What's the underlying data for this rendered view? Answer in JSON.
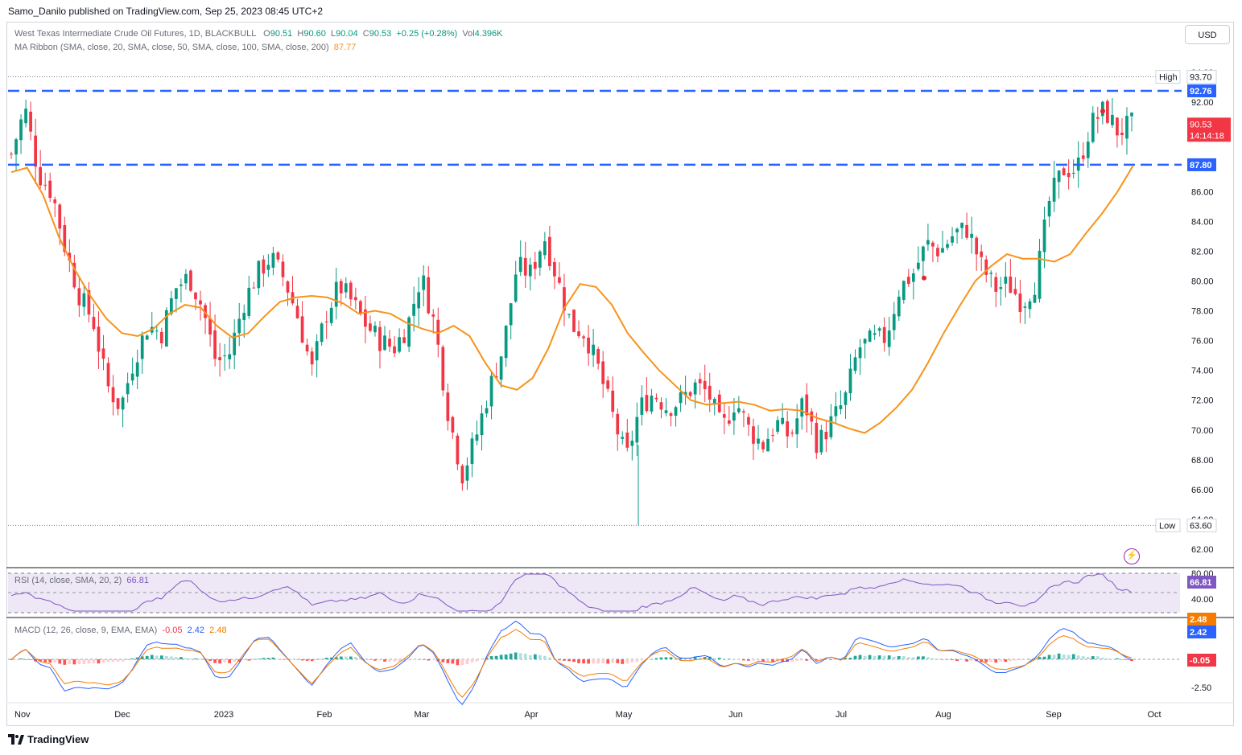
{
  "header": {
    "publisher_line": "Samo_Danilo published on TradingView.com, Sep 25, 2023 08:45 UTC+2",
    "currency_button": "USD"
  },
  "legend": {
    "title": "West Texas Intermediate Crude Oil Futures, 1D, BLACKBULL",
    "open_label": "O",
    "open": "90.51",
    "high_label": "H",
    "high": "90.60",
    "low_label": "L",
    "low": "90.04",
    "close_label": "C",
    "close": "90.53",
    "change": "+0.25 (+0.28%)",
    "vol_label": "Vol",
    "vol": "4.396K",
    "ma_name": "MA Ribbon (SMA, close, 20, SMA, close, 50, SMA, close, 100, SMA, close, 200)",
    "ma_value": "87.77"
  },
  "rsi_legend": {
    "name": "RSI (14, close, SMA, 20, 2)",
    "value": "66.81"
  },
  "macd_legend": {
    "name": "MACD (12, 26, close, 9, EMA, EMA)",
    "hist": "-0.05",
    "macd": "2.42",
    "signal": "2.48"
  },
  "price_tags": {
    "high_label": "High",
    "high_value": "93.70",
    "low_label": "Low",
    "low_value": "63.60",
    "level_upper": "92.76",
    "level_lower": "87.80",
    "last_price": "90.53",
    "countdown": "14:14:18"
  },
  "rsi_tag": "66.81",
  "macd_tags": {
    "signal": "2.48",
    "macd": "2.42",
    "hist": "-0.05"
  },
  "footer": {
    "brand": "TradingView"
  },
  "colors": {
    "up": "#089981",
    "down": "#f23645",
    "ma": "#f7931a",
    "level": "#2962ff",
    "rsi": "#7e57c2",
    "macd": "#2962ff",
    "signal": "#f57c00"
  },
  "chart_data": {
    "type": "candlestick",
    "symbol": "West Texas Intermediate Crude Oil Futures",
    "interval": "1D",
    "y_axis": {
      "ticks": [
        62,
        64,
        66,
        68,
        70,
        72,
        74,
        76,
        78,
        80,
        82,
        84,
        86,
        88,
        90,
        92,
        94
      ],
      "tick_labels": [
        "62.00",
        "64.00",
        "66.00",
        "68.00",
        "70.00",
        "72.00",
        "74.00",
        "76.00",
        "78.00",
        "80.00",
        "82.00",
        "84.00",
        "86.00",
        "88.00",
        "90.00",
        "92.00",
        "94.00"
      ],
      "range": [
        61,
        95
      ]
    },
    "x_axis": {
      "labels": [
        "Nov",
        "Dec",
        "2023",
        "Feb",
        "Mar",
        "Apr",
        "May",
        "Jun",
        "Jul",
        "Aug",
        "Sep",
        "Oct"
      ]
    },
    "horizontal_levels": [
      92.76,
      87.8
    ],
    "high_marker": 93.7,
    "low_marker": 63.6,
    "close_path": [
      [
        "Nov",
        88.5
      ],
      [
        "",
        91.6
      ],
      [
        "",
        87.2
      ],
      [
        "",
        85.9
      ],
      [
        "",
        82.0
      ],
      [
        "",
        79.0
      ],
      [
        "Dec",
        77.3
      ],
      [
        "",
        73.0
      ],
      [
        "",
        71.5
      ],
      [
        "",
        74.8
      ],
      [
        "",
        77.0
      ],
      [
        "",
        76.5
      ],
      [
        "",
        79.5
      ],
      [
        "",
        80.3
      ],
      [
        "2023",
        78.2
      ],
      [
        "",
        74.5
      ],
      [
        "",
        75.2
      ],
      [
        "",
        78.5
      ],
      [
        "",
        80.5
      ],
      [
        "",
        81.6
      ],
      [
        "",
        80.1
      ],
      [
        "Feb",
        77.5
      ],
      [
        "",
        74.0
      ],
      [
        "",
        77.7
      ],
      [
        "",
        79.7
      ],
      [
        "",
        78.5
      ],
      [
        "",
        77.0
      ],
      [
        "",
        76.0
      ],
      [
        "",
        75.5
      ],
      [
        "",
        77.0
      ],
      [
        "Mar",
        80.4
      ],
      [
        "",
        77.0
      ],
      [
        "",
        71.0
      ],
      [
        "",
        67.0
      ],
      [
        "",
        69.5
      ],
      [
        "",
        72.8
      ],
      [
        "",
        75.5
      ],
      [
        "Apr",
        81.0
      ],
      [
        "",
        80.5
      ],
      [
        "",
        83.0
      ],
      [
        "",
        80.0
      ],
      [
        "",
        77.0
      ],
      [
        "",
        76.5
      ],
      [
        "",
        74.0
      ],
      [
        "May",
        71.0
      ],
      [
        "",
        68.0
      ],
      [
        "",
        71.5
      ],
      [
        "",
        72.5
      ],
      [
        "",
        71.5
      ],
      [
        "",
        72.0
      ],
      [
        "",
        73.0
      ],
      [
        "",
        72.5
      ],
      [
        "Jun",
        70.0
      ],
      [
        "",
        72.0
      ],
      [
        "",
        70.0
      ],
      [
        "",
        69.0
      ],
      [
        "",
        70.5
      ],
      [
        "",
        69.5
      ],
      [
        "",
        72.0
      ],
      [
        "",
        69.0
      ],
      [
        "Jul",
        70.5
      ],
      [
        "",
        72.0
      ],
      [
        "",
        75.5
      ],
      [
        "",
        76.0
      ],
      [
        "",
        76.2
      ],
      [
        "",
        79.5
      ],
      [
        "",
        80.5
      ],
      [
        "Aug",
        82.5
      ],
      [
        "",
        82.0
      ],
      [
        "",
        83.2
      ],
      [
        "",
        83.5
      ],
      [
        "",
        81.0
      ],
      [
        "",
        79.5
      ],
      [
        "",
        79.8
      ],
      [
        "",
        78.5
      ],
      [
        "",
        80.0
      ],
      [
        "Sep",
        85.5
      ],
      [
        "",
        87.5
      ],
      [
        "",
        87.5
      ],
      [
        "",
        90.5
      ],
      [
        "",
        91.5
      ],
      [
        "",
        90.0
      ],
      [
        "",
        90.53
      ]
    ],
    "ma_path": [
      [
        "Nov",
        87.3
      ],
      [
        "",
        87.6
      ],
      [
        "",
        85.8
      ],
      [
        "",
        83.0
      ],
      [
        "",
        80.8
      ],
      [
        "",
        79.0
      ],
      [
        "Dec",
        77.5
      ],
      [
        "",
        76.5
      ],
      [
        "",
        76.3
      ],
      [
        "",
        76.8
      ],
      [
        "",
        77.8
      ],
      [
        "",
        78.4
      ],
      [
        "",
        78.2
      ],
      [
        "",
        77.0
      ],
      [
        "2023",
        76.2
      ],
      [
        "",
        76.5
      ],
      [
        "",
        77.6
      ],
      [
        "",
        78.6
      ],
      [
        "",
        78.9
      ],
      [
        "",
        79.0
      ],
      [
        "Feb",
        78.9
      ],
      [
        "",
        78.5
      ],
      [
        "",
        77.8
      ],
      [
        "",
        78.0
      ],
      [
        "",
        77.8
      ],
      [
        "",
        77.2
      ],
      [
        "",
        76.8
      ],
      [
        "",
        76.5
      ],
      [
        "Mar",
        77.0
      ],
      [
        "",
        76.3
      ],
      [
        "",
        74.5
      ],
      [
        "",
        73.0
      ],
      [
        "",
        72.7
      ],
      [
        "",
        73.5
      ],
      [
        "",
        75.5
      ],
      [
        "Apr",
        78.2
      ],
      [
        "",
        79.8
      ],
      [
        "",
        79.6
      ],
      [
        "",
        78.4
      ],
      [
        "",
        76.5
      ],
      [
        "",
        75.2
      ],
      [
        "May",
        74.0
      ],
      [
        "",
        73.0
      ],
      [
        "",
        72.0
      ],
      [
        "",
        71.7
      ],
      [
        "",
        71.8
      ],
      [
        "",
        71.9
      ],
      [
        "",
        71.7
      ],
      [
        "Jun",
        71.3
      ],
      [
        "",
        71.4
      ],
      [
        "",
        71.3
      ],
      [
        "",
        70.8
      ],
      [
        "",
        70.5
      ],
      [
        "",
        70.1
      ],
      [
        "",
        69.8
      ],
      [
        "Jul",
        70.5
      ],
      [
        "",
        71.5
      ],
      [
        "",
        72.7
      ],
      [
        "",
        74.5
      ],
      [
        "",
        76.5
      ],
      [
        "",
        78.3
      ],
      [
        "Aug",
        80.0
      ],
      [
        "",
        81.0
      ],
      [
        "",
        81.8
      ],
      [
        "",
        81.5
      ],
      [
        "",
        81.5
      ],
      [
        "",
        81.3
      ],
      [
        "Sep",
        81.8
      ],
      [
        "",
        83.2
      ],
      [
        "",
        84.5
      ],
      [
        "",
        86.0
      ],
      [
        "",
        87.77
      ]
    ],
    "rsi": {
      "value": 66.81,
      "range": [
        30,
        80
      ]
    },
    "macd": {
      "macd": 2.42,
      "signal": 2.48,
      "hist": -0.05,
      "tick": "-2.50"
    }
  }
}
